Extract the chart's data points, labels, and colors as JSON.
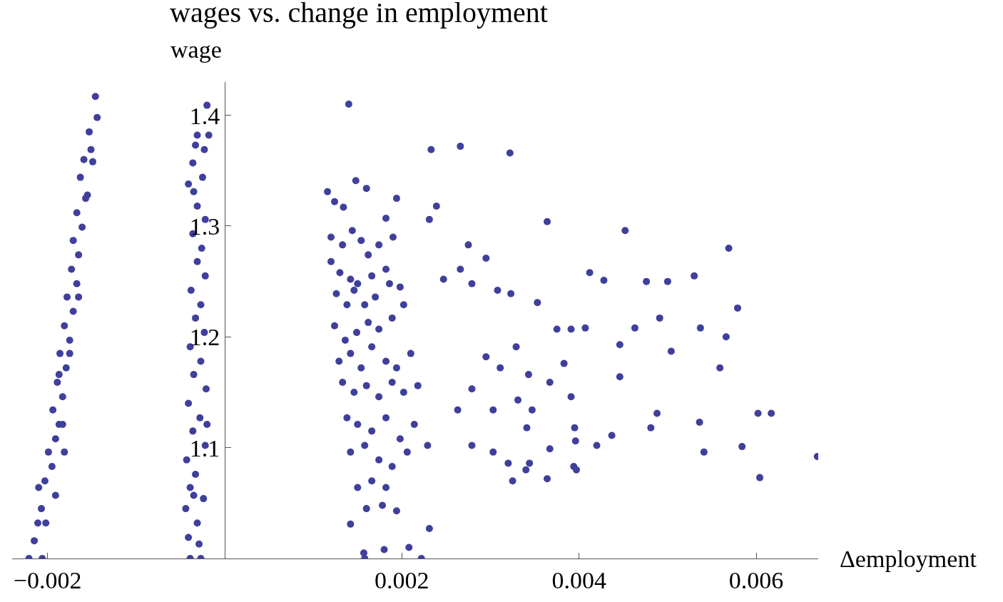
{
  "chart_data": {
    "type": "scatter",
    "title": "wages vs. change in employment",
    "xlabel": "Δemployment",
    "ylabel": "wage",
    "xlim": [
      -0.0024,
      0.0067
    ],
    "ylim": [
      1.0,
      1.43
    ],
    "xticks": [
      {
        "value": -0.002,
        "label": "−0.002"
      },
      0.002,
      0.004,
      0.006
    ],
    "yticks": [
      1.1,
      1.2,
      1.3,
      1.4
    ],
    "marker": "circle",
    "series": [
      {
        "color": "#3f3f9c",
        "x": [
          -0.00221,
          -0.00206,
          -0.00215,
          -0.00211,
          -0.00207,
          -0.0021,
          -0.00203,
          -0.00195,
          -0.00199,
          -0.00191,
          -0.00187,
          -0.00194,
          -0.00183,
          -0.00189,
          -0.00179,
          -0.00186,
          -0.00175,
          -0.00181,
          -0.00171,
          -0.00178,
          -0.00167,
          -0.00173,
          -0.00165,
          -0.00171,
          -0.00161,
          -0.00167,
          -0.00157,
          -0.00163,
          -0.00159,
          -0.00151,
          -0.00146,
          -0.00144,
          -0.00153,
          -0.00149,
          -0.00155,
          -0.00175,
          -0.00183,
          -0.00191,
          -0.00202,
          -0.00165,
          -0.00181,
          -0.00187,
          -0.00039,
          -0.00027,
          -0.00041,
          -0.00031,
          -0.00044,
          -0.00024,
          -0.00039,
          -0.00033,
          -0.00043,
          -0.00022,
          -0.00036,
          -0.00028,
          -0.00041,
          -0.00021,
          -0.00035,
          -0.00027,
          -0.00039,
          -0.00023,
          -0.00033,
          -0.00027,
          -0.00038,
          -0.00022,
          -0.00031,
          -0.00026,
          -0.00036,
          -0.00022,
          -0.00031,
          -0.00035,
          -0.00025,
          -0.00036,
          -0.00023,
          -0.00031,
          -0.0002,
          -0.00018,
          -0.00033,
          -0.00041,
          -0.0002,
          -0.00035,
          -0.00029,
          0.0014,
          0.00116,
          0.00124,
          0.00134,
          0.00148,
          0.0016,
          0.00182,
          0.00194,
          0.0012,
          0.00133,
          0.00144,
          0.00154,
          0.00162,
          0.00174,
          0.0019,
          0.0012,
          0.0013,
          0.00142,
          0.0015,
          0.00166,
          0.00182,
          0.00198,
          0.00126,
          0.00138,
          0.00146,
          0.00158,
          0.0017,
          0.00186,
          0.00124,
          0.00136,
          0.00149,
          0.00162,
          0.00174,
          0.00189,
          0.00202,
          0.00129,
          0.00142,
          0.00154,
          0.00166,
          0.00182,
          0.00194,
          0.0021,
          0.00133,
          0.00146,
          0.0016,
          0.00174,
          0.00189,
          0.00202,
          0.00218,
          0.00138,
          0.0015,
          0.00166,
          0.00182,
          0.00198,
          0.00214,
          0.00142,
          0.00158,
          0.00174,
          0.00189,
          0.00206,
          0.00229,
          0.0015,
          0.00166,
          0.00182,
          0.00142,
          0.0016,
          0.00178,
          0.00194,
          0.00231,
          0.00158,
          0.00157,
          0.0018,
          0.00208,
          0.00222,
          0.00233,
          0.00266,
          0.00322,
          0.00231,
          0.00239,
          0.00275,
          0.00266,
          0.00247,
          0.00279,
          0.00295,
          0.00308,
          0.00323,
          0.00329,
          0.00295,
          0.00311,
          0.00343,
          0.00279,
          0.00263,
          0.00303,
          0.00331,
          0.00347,
          0.00367,
          0.00383,
          0.00391,
          0.00279,
          0.00303,
          0.0032,
          0.00325,
          0.00341,
          0.0034,
          0.00367,
          0.00375,
          0.00391,
          0.00407,
          0.00364,
          0.00353,
          0.00412,
          0.00428,
          0.00452,
          0.00446,
          0.00446,
          0.00463,
          0.00476,
          0.00491,
          0.005,
          0.00504,
          0.0053,
          0.00537,
          0.00559,
          0.00566,
          0.00569,
          0.00579,
          0.00536,
          0.00541,
          0.00488,
          0.00481,
          0.00437,
          0.0042,
          0.00395,
          0.00396,
          0.00394,
          0.00397,
          0.00364,
          0.00344,
          0.00584,
          0.00602,
          0.00617,
          0.00604,
          0.00669
        ],
        "values": [
          1.0,
          1.0,
          1.016,
          1.032,
          1.045,
          1.064,
          1.07,
          1.083,
          1.096,
          1.108,
          1.121,
          1.134,
          1.146,
          1.159,
          1.172,
          1.185,
          1.197,
          1.21,
          1.223,
          1.236,
          1.248,
          1.261,
          1.274,
          1.287,
          1.299,
          1.312,
          1.325,
          1.344,
          1.36,
          1.369,
          1.417,
          1.398,
          1.385,
          1.358,
          1.328,
          1.185,
          1.121,
          1.057,
          1.032,
          1.236,
          1.096,
          1.166,
          1.0,
          1.0,
          1.019,
          1.032,
          1.045,
          1.054,
          1.064,
          1.076,
          1.089,
          1.102,
          1.115,
          1.127,
          1.14,
          1.153,
          1.166,
          1.178,
          1.191,
          1.204,
          1.217,
          1.229,
          1.242,
          1.255,
          1.268,
          1.28,
          1.293,
          1.306,
          1.318,
          1.331,
          1.344,
          1.357,
          1.369,
          1.382,
          1.409,
          1.382,
          1.373,
          1.338,
          1.121,
          1.057,
          1.013,
          1.41,
          1.331,
          1.322,
          1.317,
          1.341,
          1.334,
          1.307,
          1.325,
          1.29,
          1.283,
          1.296,
          1.287,
          1.274,
          1.283,
          1.29,
          1.268,
          1.258,
          1.252,
          1.248,
          1.255,
          1.261,
          1.245,
          1.239,
          1.229,
          1.242,
          1.229,
          1.236,
          1.248,
          1.21,
          1.197,
          1.204,
          1.213,
          1.207,
          1.217,
          1.229,
          1.178,
          1.185,
          1.172,
          1.191,
          1.178,
          1.172,
          1.185,
          1.159,
          1.15,
          1.156,
          1.146,
          1.159,
          1.15,
          1.156,
          1.127,
          1.121,
          1.115,
          1.127,
          1.108,
          1.121,
          1.096,
          1.102,
          1.089,
          1.083,
          1.096,
          1.102,
          1.064,
          1.07,
          1.064,
          1.031,
          1.045,
          1.048,
          1.043,
          1.027,
          1.0,
          1.005,
          1.008,
          1.01,
          1.0,
          1.369,
          1.372,
          1.366,
          1.306,
          1.318,
          1.283,
          1.261,
          1.252,
          1.248,
          1.271,
          1.242,
          1.239,
          1.191,
          1.182,
          1.172,
          1.166,
          1.153,
          1.134,
          1.134,
          1.143,
          1.134,
          1.159,
          1.176,
          1.146,
          1.102,
          1.096,
          1.086,
          1.07,
          1.118,
          1.08,
          1.099,
          1.207,
          1.207,
          1.208,
          1.304,
          1.231,
          1.258,
          1.251,
          1.296,
          1.193,
          1.164,
          1.208,
          1.25,
          1.217,
          1.25,
          1.187,
          1.255,
          1.208,
          1.172,
          1.2,
          1.28,
          1.226,
          1.123,
          1.096,
          1.131,
          1.118,
          1.111,
          1.102,
          1.118,
          1.106,
          1.083,
          1.08,
          1.072,
          1.086,
          1.101,
          1.131,
          1.131,
          1.073,
          1.092
        ]
      }
    ]
  }
}
